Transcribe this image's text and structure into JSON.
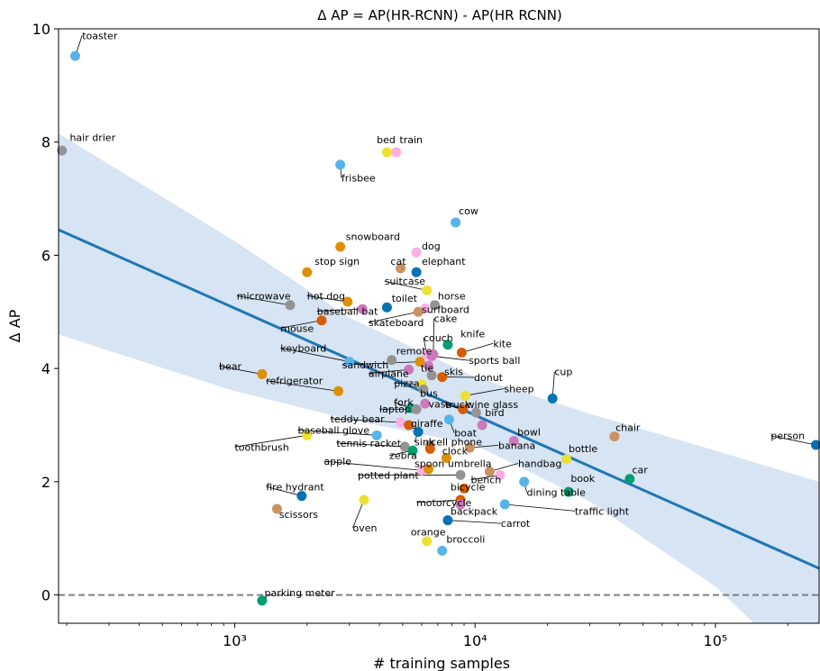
{
  "chart_data": {
    "type": "scatter",
    "title": "Δ AP = AP(HR-RCNN) - AP(HR RCNN)",
    "xlabel": "# training samples",
    "ylabel": "Δ AP",
    "xscale": "log",
    "xlim": [
      185,
      270000
    ],
    "ylim": [
      -0.5,
      10
    ],
    "x_ticks": [
      {
        "value": 1000,
        "label": "10³"
      },
      {
        "value": 10000,
        "label": "10⁴"
      },
      {
        "value": 100000,
        "label": "10⁵"
      }
    ],
    "y_ticks": [
      0,
      2,
      4,
      6,
      8,
      10
    ],
    "reference_line": {
      "y": 0,
      "style": "dashed",
      "color": "#808080"
    },
    "regression": {
      "color": "#1f77b4",
      "band_color": "#c6d9ee",
      "line": [
        {
          "x": 185,
          "y": 6.45
        },
        {
          "x": 270000,
          "y": 0.47
        }
      ],
      "band_upper": [
        {
          "x": 185,
          "y": 8.15
        },
        {
          "x": 1000,
          "y": 6.25
        },
        {
          "x": 3000,
          "y": 4.9
        },
        {
          "x": 10000,
          "y": 3.85
        },
        {
          "x": 30000,
          "y": 3.2
        },
        {
          "x": 100000,
          "y": 2.55
        },
        {
          "x": 270000,
          "y": 2.0
        }
      ],
      "band_lower": [
        {
          "x": 185,
          "y": 4.6
        },
        {
          "x": 1000,
          "y": 3.6
        },
        {
          "x": 3000,
          "y": 3.1
        },
        {
          "x": 10000,
          "y": 2.65
        },
        {
          "x": 30000,
          "y": 1.65
        },
        {
          "x": 100000,
          "y": 0.15
        },
        {
          "x": 270000,
          "y": -1.6
        }
      ]
    },
    "points": [
      {
        "name": "toaster",
        "x": 217,
        "y": 9.52,
        "color": "#56b4e9",
        "lx": 232,
        "ly": 9.82
      },
      {
        "name": "hair drier",
        "x": 191,
        "y": 7.85,
        "color": "#949494",
        "lx": 206,
        "ly": 8.02
      },
      {
        "name": "bed",
        "x": 4300,
        "y": 7.82,
        "color": "#ece133",
        "lx": 3900,
        "ly": 7.98
      },
      {
        "name": "train",
        "x": 4700,
        "y": 7.82,
        "color": "#fbafe4",
        "lx": 4850,
        "ly": 7.98
      },
      {
        "name": "frisbee",
        "x": 2750,
        "y": 7.6,
        "color": "#56b4e9",
        "lx": 2780,
        "ly": 7.3
      },
      {
        "name": "cow",
        "x": 8300,
        "y": 6.58,
        "color": "#56b4e9",
        "lx": 8550,
        "ly": 6.72
      },
      {
        "name": "snowboard",
        "x": 2750,
        "y": 6.15,
        "color": "#de8f05",
        "lx": 2900,
        "ly": 6.27
      },
      {
        "name": "dog",
        "x": 5700,
        "y": 6.05,
        "color": "#fbafe4",
        "lx": 6000,
        "ly": 6.1
      },
      {
        "name": "cat",
        "x": 4900,
        "y": 5.77,
        "color": "#ca9161",
        "lx": 4450,
        "ly": 5.83
      },
      {
        "name": "elephant",
        "x": 5700,
        "y": 5.7,
        "color": "#0173b2",
        "lx": 6000,
        "ly": 5.83
      },
      {
        "name": "stop sign",
        "x": 2000,
        "y": 5.7,
        "color": "#de8f05",
        "lx": 2150,
        "ly": 5.83
      },
      {
        "name": "suitcase",
        "x": 6300,
        "y": 5.38,
        "color": "#ece133",
        "lx": 4200,
        "ly": 5.48
      },
      {
        "name": "microwave",
        "x": 1700,
        "y": 5.12,
        "color": "#949494",
        "lx": 1020,
        "ly": 5.22
      },
      {
        "name": "hot dog",
        "x": 2950,
        "y": 5.18,
        "color": "#de8f05",
        "lx": 2000,
        "ly": 5.22
      },
      {
        "name": "horse",
        "x": 6800,
        "y": 5.12,
        "color": "#949494",
        "lx": 7000,
        "ly": 5.22
      },
      {
        "name": "toilet",
        "x": 4300,
        "y": 5.08,
        "color": "#0173b2",
        "lx": 4500,
        "ly": 5.18
      },
      {
        "name": "surfboard",
        "x": 6200,
        "y": 5.06,
        "color": "#fbafe4",
        "lx": 6000,
        "ly": 4.98
      },
      {
        "name": "baseball bat",
        "x": 3400,
        "y": 5.05,
        "color": "#cc78bc",
        "lx": 2200,
        "ly": 4.95
      },
      {
        "name": "skateboard",
        "x": 5800,
        "y": 5.0,
        "color": "#ca9161",
        "lx": 3600,
        "ly": 4.75
      },
      {
        "name": "mouse",
        "x": 2300,
        "y": 4.85,
        "color": "#d55e00",
        "lx": 1550,
        "ly": 4.65
      },
      {
        "name": "cake",
        "x": 6700,
        "y": 4.25,
        "color": "#cc78bc",
        "lx": 6750,
        "ly": 4.82
      },
      {
        "name": "couch",
        "x": 6300,
        "y": 4.25,
        "color": "#fbafe4",
        "lx": 6100,
        "ly": 4.48
      },
      {
        "name": "knife",
        "x": 7700,
        "y": 4.42,
        "color": "#029e73",
        "lx": 8700,
        "ly": 4.55
      },
      {
        "name": "keyboard",
        "x": 3000,
        "y": 4.12,
        "color": "#56b4e9",
        "lx": 1550,
        "ly": 4.3
      },
      {
        "name": "kite",
        "x": 8800,
        "y": 4.28,
        "color": "#d55e00",
        "lx": 11900,
        "ly": 4.38
      },
      {
        "name": "remote",
        "x": 4500,
        "y": 4.15,
        "color": "#949494",
        "lx": 4700,
        "ly": 4.25
      },
      {
        "name": "sports ball",
        "x": 6600,
        "y": 4.22,
        "color": "#cc78bc",
        "lx": 9400,
        "ly": 4.08
      },
      {
        "name": "sandwich",
        "x": 5900,
        "y": 4.12,
        "color": "#de8f05",
        "lx": 2800,
        "ly": 4.0
      },
      {
        "name": "tie",
        "x": 6400,
        "y": 4.05,
        "color": "#cc78bc",
        "lx": 5950,
        "ly": 3.95
      },
      {
        "name": "bear",
        "x": 1300,
        "y": 3.9,
        "color": "#de8f05",
        "lx": 860,
        "ly": 3.98
      },
      {
        "name": "airplane",
        "x": 5300,
        "y": 3.98,
        "color": "#cc78bc",
        "lx": 3600,
        "ly": 3.85
      },
      {
        "name": "skis",
        "x": 6600,
        "y": 3.88,
        "color": "#949494",
        "lx": 7450,
        "ly": 3.88
      },
      {
        "name": "donut",
        "x": 7300,
        "y": 3.85,
        "color": "#d55e00",
        "lx": 9900,
        "ly": 3.78
      },
      {
        "name": "pizza",
        "x": 6000,
        "y": 3.72,
        "color": "#ece133",
        "lx": 4600,
        "ly": 3.68
      },
      {
        "name": "refrigerator",
        "x": 2700,
        "y": 3.6,
        "color": "#de8f05",
        "lx": 1350,
        "ly": 3.72
      },
      {
        "name": "bus",
        "x": 6100,
        "y": 3.63,
        "color": "#949494",
        "lx": 5900,
        "ly": 3.5
      },
      {
        "name": "cup",
        "x": 21000,
        "y": 3.47,
        "color": "#0173b2",
        "lx": 21400,
        "ly": 3.88
      },
      {
        "name": "sheep",
        "x": 9100,
        "y": 3.52,
        "color": "#ece133",
        "lx": 13200,
        "ly": 3.58
      },
      {
        "name": "fork",
        "x": 5400,
        "y": 3.3,
        "color": "#029e73",
        "lx": 4600,
        "ly": 3.34
      },
      {
        "name": "vase",
        "x": 6200,
        "y": 3.38,
        "color": "#cc78bc",
        "lx": 6400,
        "ly": 3.31
      },
      {
        "name": "truck",
        "x": 8900,
        "y": 3.28,
        "color": "#d55e00",
        "lx": 7500,
        "ly": 3.3
      },
      {
        "name": "wine glass",
        "x": 10100,
        "y": 3.22,
        "color": "#949494",
        "lx": 9200,
        "ly": 3.3
      },
      {
        "name": "laptop",
        "x": 5700,
        "y": 3.28,
        "color": "#949494",
        "lx": 4000,
        "ly": 3.22
      },
      {
        "name": "bird",
        "x": 10700,
        "y": 3.0,
        "color": "#cc78bc",
        "lx": 11000,
        "ly": 3.16
      },
      {
        "name": "teddy bear",
        "x": 4900,
        "y": 3.05,
        "color": "#fbafe4",
        "lx": 2500,
        "ly": 3.05
      },
      {
        "name": "giraffe",
        "x": 5300,
        "y": 3.0,
        "color": "#d55e00",
        "lx": 5400,
        "ly": 2.97
      },
      {
        "name": "boat",
        "x": 7800,
        "y": 3.1,
        "color": "#56b4e9",
        "lx": 8200,
        "ly": 2.8
      },
      {
        "name": "chair",
        "x": 38000,
        "y": 2.8,
        "color": "#ca9161",
        "lx": 38400,
        "ly": 2.9
      },
      {
        "name": "person",
        "x": 262000,
        "y": 2.65,
        "color": "#0173b2",
        "lx": 170000,
        "ly": 2.75
      },
      {
        "name": "bowl",
        "x": 14500,
        "y": 2.72,
        "color": "#cc78bc",
        "lx": 15000,
        "ly": 2.82
      },
      {
        "name": "baseball glove",
        "x": 3900,
        "y": 2.82,
        "color": "#56b4e9",
        "lx": 1830,
        "ly": 2.85
      },
      {
        "name": "sink",
        "x": 5800,
        "y": 2.88,
        "color": "#0173b2",
        "lx": 5600,
        "ly": 2.64
      },
      {
        "name": "cell phone",
        "x": 6500,
        "y": 2.65,
        "color": "#949494",
        "lx": 6550,
        "ly": 2.64
      },
      {
        "name": "toothbrush",
        "x": 2000,
        "y": 2.82,
        "color": "#ece133",
        "lx": 1000,
        "ly": 2.55
      },
      {
        "name": "tennis racket",
        "x": 5100,
        "y": 2.62,
        "color": "#949494",
        "lx": 2650,
        "ly": 2.62
      },
      {
        "name": "clock",
        "x": 6500,
        "y": 2.58,
        "color": "#d55e00",
        "lx": 7300,
        "ly": 2.48
      },
      {
        "name": "banana",
        "x": 9500,
        "y": 2.6,
        "color": "#ca9161",
        "lx": 12500,
        "ly": 2.58
      },
      {
        "name": "zebra",
        "x": 5500,
        "y": 2.55,
        "color": "#029e73",
        "lx": 4400,
        "ly": 2.4
      },
      {
        "name": "bottle",
        "x": 24000,
        "y": 2.4,
        "color": "#ece133",
        "lx": 24500,
        "ly": 2.52
      },
      {
        "name": "apple",
        "x": 6000,
        "y": 2.2,
        "color": "#fbafe4",
        "lx": 2350,
        "ly": 2.3
      },
      {
        "name": "umbrella",
        "x": 7600,
        "y": 2.42,
        "color": "#de8f05",
        "lx": 7700,
        "ly": 2.26
      },
      {
        "name": "spoon",
        "x": 6400,
        "y": 2.22,
        "color": "#de8f05",
        "lx": 5600,
        "ly": 2.26
      },
      {
        "name": "handbag",
        "x": 11500,
        "y": 2.18,
        "color": "#ca9161",
        "lx": 15100,
        "ly": 2.26
      },
      {
        "name": "potted plant",
        "x": 8700,
        "y": 2.12,
        "color": "#949494",
        "lx": 3250,
        "ly": 2.05
      },
      {
        "name": "bench",
        "x": 12700,
        "y": 2.12,
        "color": "#fbafe4",
        "lx": 9600,
        "ly": 1.97
      },
      {
        "name": "car",
        "x": 44000,
        "y": 2.05,
        "color": "#029e73",
        "lx": 45000,
        "ly": 2.15
      },
      {
        "name": "book",
        "x": 24500,
        "y": 1.82,
        "color": "#029e73",
        "lx": 25000,
        "ly": 2.0
      },
      {
        "name": "dining table",
        "x": 16000,
        "y": 2.0,
        "color": "#56b4e9",
        "lx": 16400,
        "ly": 1.75
      },
      {
        "name": "bicycle",
        "x": 9000,
        "y": 1.88,
        "color": "#d55e00",
        "lx": 7900,
        "ly": 1.85
      },
      {
        "name": "fire hydrant",
        "x": 1900,
        "y": 1.75,
        "color": "#0173b2",
        "lx": 1350,
        "ly": 1.85
      },
      {
        "name": "oven",
        "x": 3450,
        "y": 1.68,
        "color": "#ece133",
        "lx": 3100,
        "ly": 1.12
      },
      {
        "name": "motorcycle",
        "x": 8700,
        "y": 1.68,
        "color": "#d55e00",
        "lx": 5700,
        "ly": 1.57
      },
      {
        "name": "backpack",
        "x": 8700,
        "y": 1.6,
        "color": "#cc78bc",
        "lx": 7900,
        "ly": 1.42
      },
      {
        "name": "traffic light",
        "x": 13300,
        "y": 1.6,
        "color": "#56b4e9",
        "lx": 26000,
        "ly": 1.42
      },
      {
        "name": "scissors",
        "x": 1500,
        "y": 1.52,
        "color": "#ca9161",
        "lx": 1530,
        "ly": 1.36
      },
      {
        "name": "carrot",
        "x": 7700,
        "y": 1.32,
        "color": "#0173b2",
        "lx": 12800,
        "ly": 1.2
      },
      {
        "name": "orange",
        "x": 6300,
        "y": 0.95,
        "color": "#ece133",
        "lx": 5400,
        "ly": 1.05
      },
      {
        "name": "broccoli",
        "x": 7300,
        "y": 0.78,
        "color": "#56b4e9",
        "lx": 7600,
        "ly": 0.92
      },
      {
        "name": "parking meter",
        "x": 1300,
        "y": -0.1,
        "color": "#029e73",
        "lx": 1330,
        "ly": -0.02
      }
    ]
  }
}
